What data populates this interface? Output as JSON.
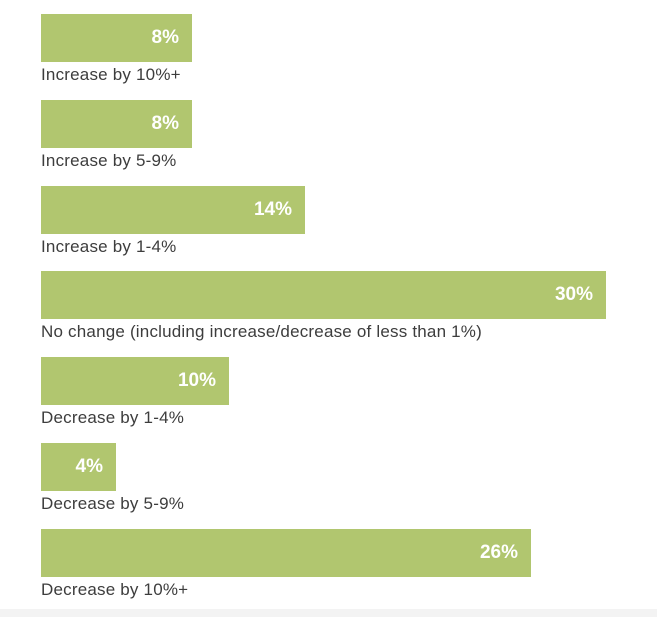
{
  "chart_data": {
    "type": "bar",
    "orientation": "horizontal",
    "categories": [
      "Increase by 10%+",
      "Increase by 5-9%",
      "Increase by 1-4%",
      "No change (including increase/decrease of less than 1%)",
      "Decrease by 1-4%",
      "Decrease by 5-9%",
      "Decrease by 10%+"
    ],
    "values": [
      8,
      8,
      14,
      30,
      10,
      4,
      26
    ],
    "value_labels": [
      "8%",
      "8%",
      "14%",
      "30%",
      "10%",
      "4%",
      "26%"
    ],
    "bar_color": "#b1c66f",
    "value_label_color": "#ffffff",
    "label_color": "#3d3d3d",
    "xlim": [
      0,
      30
    ],
    "grid": false,
    "legend": "none"
  }
}
